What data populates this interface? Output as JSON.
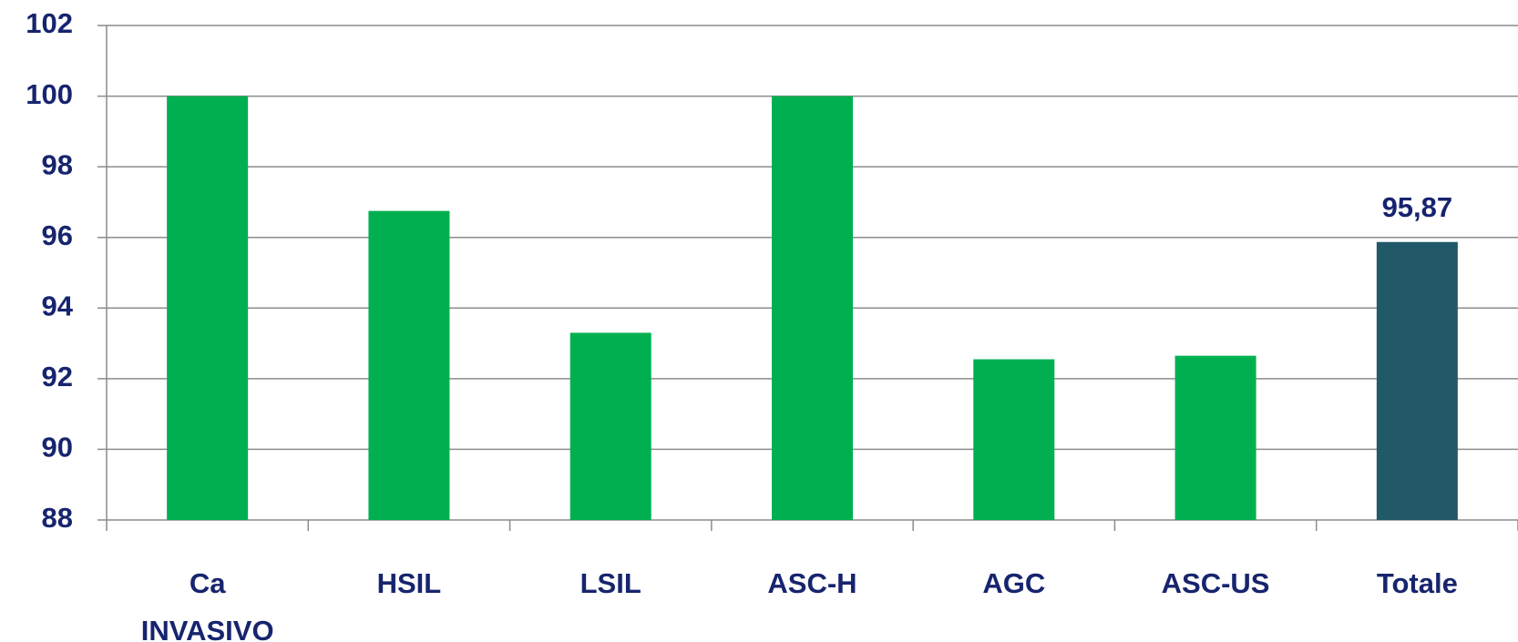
{
  "chart_data": {
    "type": "bar",
    "categories": [
      "Ca INVASIVO",
      "HSIL",
      "LSIL",
      "ASC-H",
      "AGC",
      "ASC-US",
      "Totale"
    ],
    "values": [
      100,
      96.75,
      93.3,
      100,
      92.55,
      92.65,
      95.87
    ],
    "value_labels": [
      null,
      null,
      null,
      null,
      null,
      null,
      "95,87"
    ],
    "colors": [
      "#00b050",
      "#00b050",
      "#00b050",
      "#00b050",
      "#00b050",
      "#00b050",
      "#215968"
    ],
    "ylim": [
      88,
      102
    ],
    "yticks": [
      88,
      90,
      92,
      94,
      96,
      98,
      100,
      102
    ],
    "grid": true
  }
}
